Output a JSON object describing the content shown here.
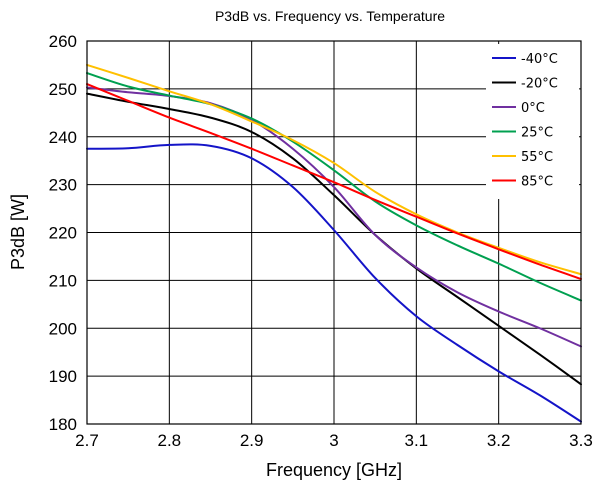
{
  "chart_data": {
    "type": "line",
    "title": "P3dB vs. Frequency vs. Temperature",
    "xlabel": "Frequency [GHz]",
    "ylabel": "P3dB [W]",
    "xlim": [
      2.7,
      3.3
    ],
    "ylim": [
      180,
      260
    ],
    "xticks": [
      2.7,
      2.8,
      2.9,
      3.0,
      3.1,
      3.2,
      3.3
    ],
    "xtick_labels": [
      "2.7",
      "2.8",
      "2.9",
      "3",
      "3.1",
      "3.2",
      "3.3"
    ],
    "yticks": [
      180,
      190,
      200,
      210,
      220,
      230,
      240,
      250,
      260
    ],
    "ytick_labels": [
      "180",
      "190",
      "200",
      "210",
      "220",
      "230",
      "240",
      "250",
      "260"
    ],
    "grid": true,
    "legend_position": "top-right",
    "x": [
      2.7,
      2.75,
      2.8,
      2.85,
      2.9,
      2.95,
      3.0,
      3.05,
      3.1,
      3.15,
      3.2,
      3.25,
      3.3
    ],
    "series": [
      {
        "name": "-40°C",
        "color": "#1414c8",
        "values": [
          237.5,
          237.6,
          238.3,
          238.1,
          235.5,
          229.5,
          220.5,
          210.5,
          202.5,
          196.5,
          191.0,
          186.0,
          180.5
        ]
      },
      {
        "name": "-20°C",
        "color": "#000000",
        "values": [
          249.0,
          247.3,
          245.8,
          244.0,
          241.0,
          235.5,
          227.8,
          219.5,
          212.5,
          206.5,
          200.5,
          194.5,
          188.3
        ]
      },
      {
        "name": "0°C",
        "color": "#7030a0",
        "values": [
          250.3,
          249.3,
          248.5,
          247.0,
          243.5,
          237.5,
          229.5,
          219.5,
          212.7,
          207.5,
          203.5,
          200.0,
          196.2
        ]
      },
      {
        "name": "25°C",
        "color": "#00a050",
        "values": [
          253.3,
          250.5,
          248.6,
          246.8,
          243.8,
          239.0,
          233.0,
          226.5,
          221.5,
          217.3,
          213.5,
          209.5,
          205.8
        ]
      },
      {
        "name": "55°C",
        "color": "#ffc000",
        "values": [
          255.0,
          252.3,
          249.5,
          246.8,
          243.2,
          239.3,
          234.5,
          228.5,
          223.8,
          220.0,
          216.8,
          213.8,
          211.3
        ]
      },
      {
        "name": "85°C",
        "color": "#ff0000",
        "values": [
          251.0,
          247.5,
          244.0,
          240.8,
          237.5,
          234.0,
          230.5,
          226.8,
          223.3,
          219.8,
          216.5,
          213.3,
          210.3
        ]
      }
    ]
  }
}
